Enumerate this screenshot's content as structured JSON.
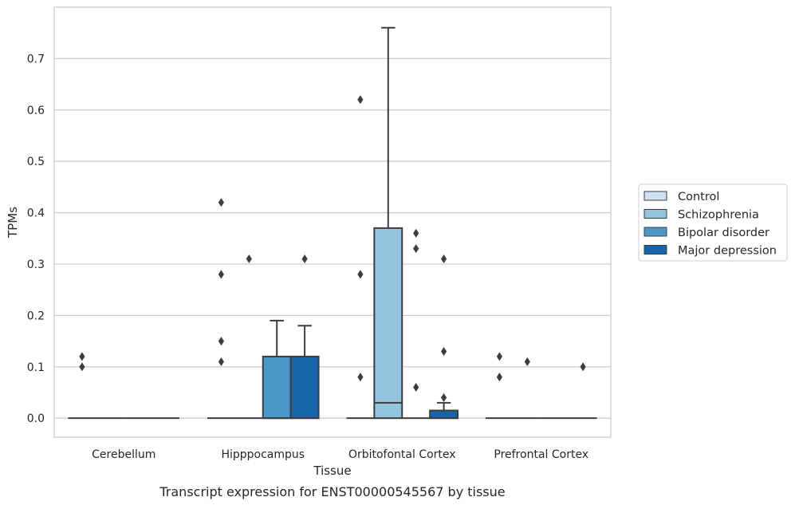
{
  "chart_data": {
    "type": "box",
    "xlabel": "Tissue",
    "ylabel": "TPMs",
    "caption": "Transcript expression for ENST00000545567 by tissue",
    "categories": [
      "Cerebellum",
      "Hipppocampus",
      "Orbitofontal Cortex",
      "Prefrontal Cortex"
    ],
    "yticks": [
      "0.0",
      "0.1",
      "0.2",
      "0.3",
      "0.4",
      "0.5",
      "0.6",
      "0.7"
    ],
    "ylim": [
      -0.037,
      0.8
    ],
    "grid": true,
    "legend_position": "right",
    "series": [
      {
        "name": "Control",
        "color": "#d0e1f2",
        "boxes": [
          {
            "q1": 0,
            "median": 0,
            "q3": 0,
            "whisker_low": 0,
            "whisker_high": 0,
            "outliers": [
              0.12,
              0.1
            ]
          },
          {
            "q1": 0,
            "median": 0,
            "q3": 0,
            "whisker_low": 0,
            "whisker_high": 0,
            "outliers": [
              0.42,
              0.28,
              0.15,
              0.11
            ]
          },
          {
            "q1": 0,
            "median": 0,
            "q3": 0,
            "whisker_low": 0,
            "whisker_high": 0,
            "outliers": [
              0.62,
              0.28,
              0.08
            ]
          },
          {
            "q1": 0,
            "median": 0,
            "q3": 0,
            "whisker_low": 0,
            "whisker_high": 0,
            "outliers": [
              0.12,
              0.08
            ]
          }
        ]
      },
      {
        "name": "Schizophrenia",
        "color": "#94c4df",
        "boxes": [
          {
            "q1": 0,
            "median": 0,
            "q3": 0,
            "whisker_low": 0,
            "whisker_high": 0,
            "outliers": []
          },
          {
            "q1": 0,
            "median": 0,
            "q3": 0,
            "whisker_low": 0,
            "whisker_high": 0,
            "outliers": [
              0.31
            ]
          },
          {
            "q1": 0,
            "median": 0.03,
            "q3": 0.37,
            "whisker_low": 0,
            "whisker_high": 0.76,
            "outliers": []
          },
          {
            "q1": 0,
            "median": 0,
            "q3": 0,
            "whisker_low": 0,
            "whisker_high": 0,
            "outliers": [
              0.11
            ]
          }
        ]
      },
      {
        "name": "Bipolar disorder",
        "color": "#4a98c9",
        "boxes": [
          {
            "q1": 0,
            "median": 0,
            "q3": 0,
            "whisker_low": 0,
            "whisker_high": 0,
            "outliers": []
          },
          {
            "q1": 0,
            "median": 0,
            "q3": 0.12,
            "whisker_low": 0,
            "whisker_high": 0.19,
            "outliers": []
          },
          {
            "q1": 0,
            "median": 0,
            "q3": 0,
            "whisker_low": 0,
            "whisker_high": 0,
            "outliers": [
              0.36,
              0.33,
              0.06
            ]
          },
          {
            "q1": 0,
            "median": 0,
            "q3": 0,
            "whisker_low": 0,
            "whisker_high": 0,
            "outliers": []
          }
        ]
      },
      {
        "name": "Major depression",
        "color": "#1764ab",
        "boxes": [
          {
            "q1": 0,
            "median": 0,
            "q3": 0,
            "whisker_low": 0,
            "whisker_high": 0,
            "outliers": []
          },
          {
            "q1": 0,
            "median": 0,
            "q3": 0.12,
            "whisker_low": 0,
            "whisker_high": 0.18,
            "outliers": [
              0.31
            ]
          },
          {
            "q1": 0,
            "median": 0,
            "q3": 0.015,
            "whisker_low": 0,
            "whisker_high": 0.03,
            "outliers": [
              0.31,
              0.13,
              0.04
            ]
          },
          {
            "q1": 0,
            "median": 0,
            "q3": 0,
            "whisker_low": 0,
            "whisker_high": 0,
            "outliers": [
              0.1
            ]
          }
        ]
      }
    ]
  }
}
